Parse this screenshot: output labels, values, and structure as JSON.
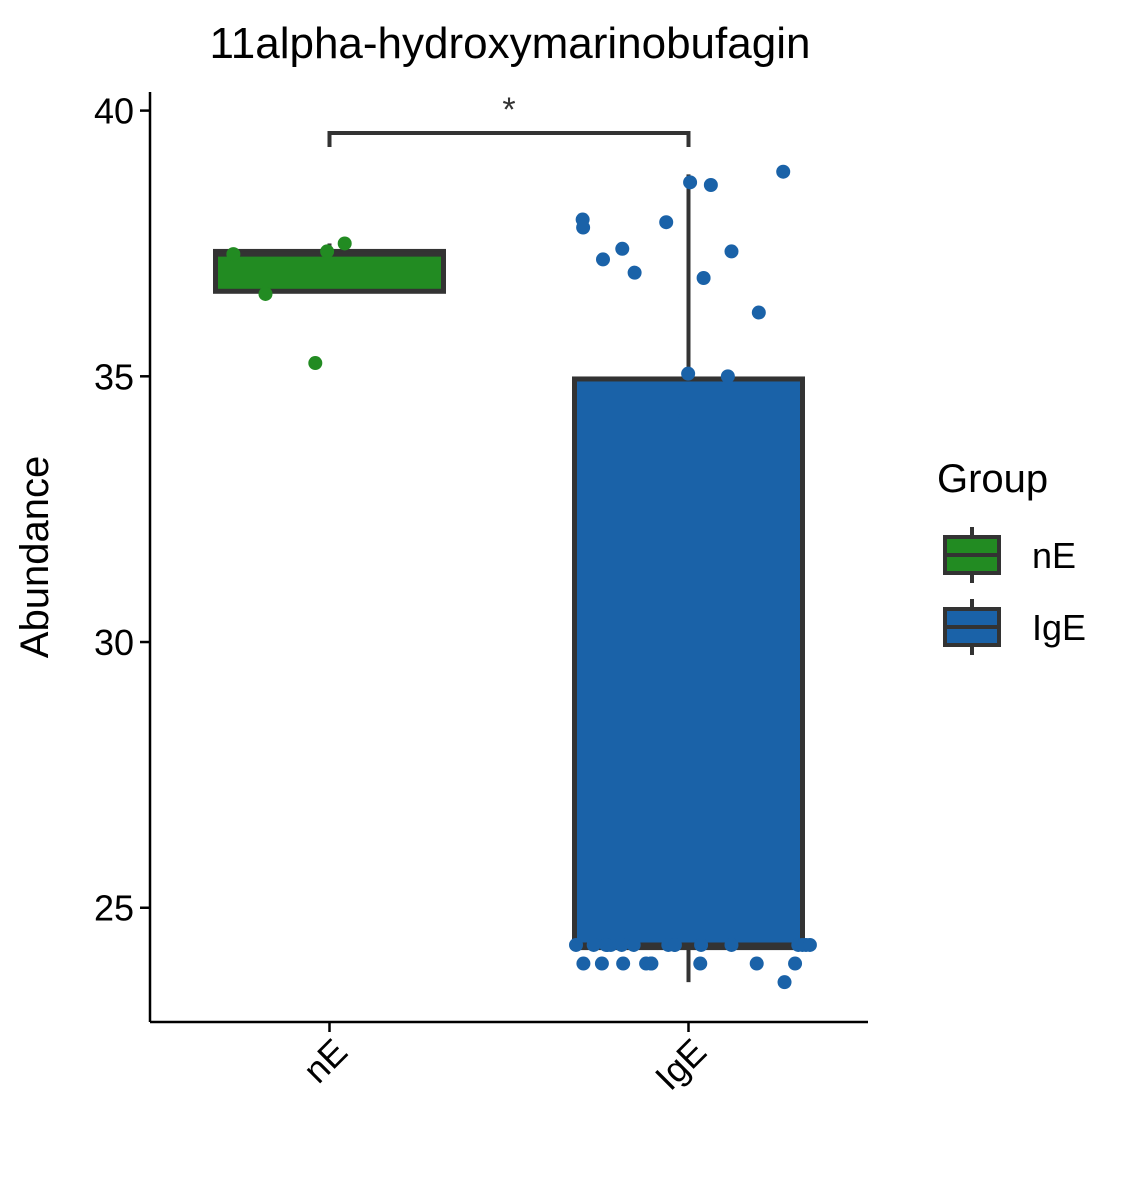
{
  "chart_data": {
    "type": "box",
    "title": "11alpha-hydroxymarinobufagin",
    "xlabel": "",
    "ylabel": "Abundance",
    "categories": [
      "nE",
      "IgE"
    ],
    "ylim": [
      22.85,
      40.35
    ],
    "yticks": [
      25,
      30,
      35,
      40
    ],
    "legend": {
      "title": "Group",
      "position": "right",
      "entries": [
        "nE",
        "IgE"
      ]
    },
    "colors": {
      "nE": "#228B22",
      "IgE": "#1A62A8",
      "outline": "#333333"
    },
    "series": [
      {
        "name": "nE",
        "box": {
          "whisker_low": 36.6,
          "q1": 36.6,
          "median": 37.3,
          "q3": 37.35,
          "whisker_high": 37.5
        },
        "points": [
          37.35,
          37.5,
          37.3,
          36.55,
          35.25
        ]
      },
      {
        "name": "IgE",
        "box": {
          "whisker_low": 23.6,
          "q1": 24.25,
          "median": 24.3,
          "q3": 34.95,
          "whisker_high": 38.8
        },
        "points": [
          38.65,
          37.8,
          38.85,
          38.6,
          37.9,
          36.95,
          36.2,
          35.0,
          37.95,
          35.05,
          37.4,
          37.35,
          37.2,
          36.85,
          34.2,
          24.3,
          24.3,
          24.3,
          24.3,
          24.3,
          24.3,
          24.3,
          24.3,
          24.3,
          24.3,
          24.3,
          24.3,
          24.3,
          24.3,
          24.3,
          24.3,
          23.95,
          23.95,
          23.95,
          23.95,
          23.95,
          23.95,
          23.95,
          23.95,
          23.95,
          23.6
        ]
      }
    ],
    "significance": {
      "between": [
        "nE",
        "IgE"
      ],
      "label": "*"
    }
  }
}
